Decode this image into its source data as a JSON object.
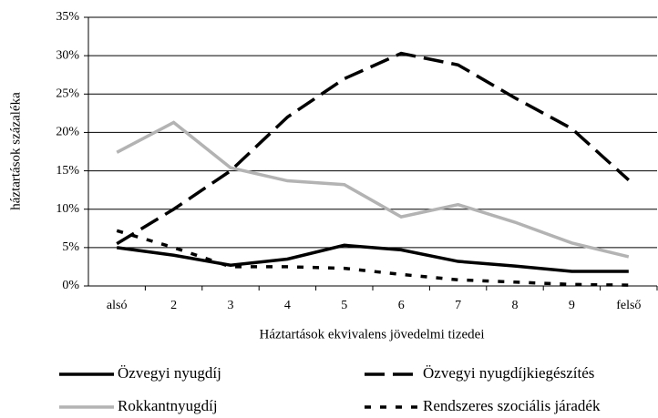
{
  "chart_data": {
    "type": "line",
    "y_label": "háztartások százaléka",
    "x_label": "Háztartások ekvivalens jövedelmi tizedei",
    "categories": [
      "alsó",
      "2",
      "3",
      "4",
      "5",
      "6",
      "7",
      "8",
      "9",
      "felső"
    ],
    "ylim": [
      0,
      35
    ],
    "yticks": [
      {
        "value": 0,
        "label": "0%"
      },
      {
        "value": 5,
        "label": "5%"
      },
      {
        "value": 10,
        "label": "10%"
      },
      {
        "value": 15,
        "label": "15%"
      },
      {
        "value": 20,
        "label": "20%"
      },
      {
        "value": 25,
        "label": "25%"
      },
      {
        "value": 30,
        "label": "30%"
      },
      {
        "value": 35,
        "label": "35%"
      }
    ],
    "grid": true,
    "series": [
      {
        "name": "Özvegyi nyugdíj",
        "color": "#000000",
        "dash": "solid",
        "values": [
          5.0,
          4.0,
          2.7,
          3.5,
          5.3,
          4.7,
          3.2,
          2.6,
          1.9,
          1.9
        ]
      },
      {
        "name": "Özvegyi nyugdíjkiegészítés",
        "color": "#000000",
        "dash": "long",
        "values": [
          5.5,
          10.0,
          15.0,
          22.0,
          27.0,
          30.3,
          28.8,
          24.5,
          20.5,
          13.8
        ]
      },
      {
        "name": "Rokkantnyugdíj",
        "color": "#b3b3b3",
        "dash": "solid",
        "values": [
          17.4,
          21.3,
          15.4,
          13.7,
          13.2,
          9.0,
          10.6,
          8.3,
          5.6,
          3.8
        ]
      },
      {
        "name": "Rendszeres szociális járadék",
        "color": "#000000",
        "dash": "short",
        "values": [
          7.2,
          5.0,
          2.5,
          2.5,
          2.3,
          1.5,
          0.8,
          0.5,
          0.2,
          0.1
        ]
      }
    ]
  }
}
